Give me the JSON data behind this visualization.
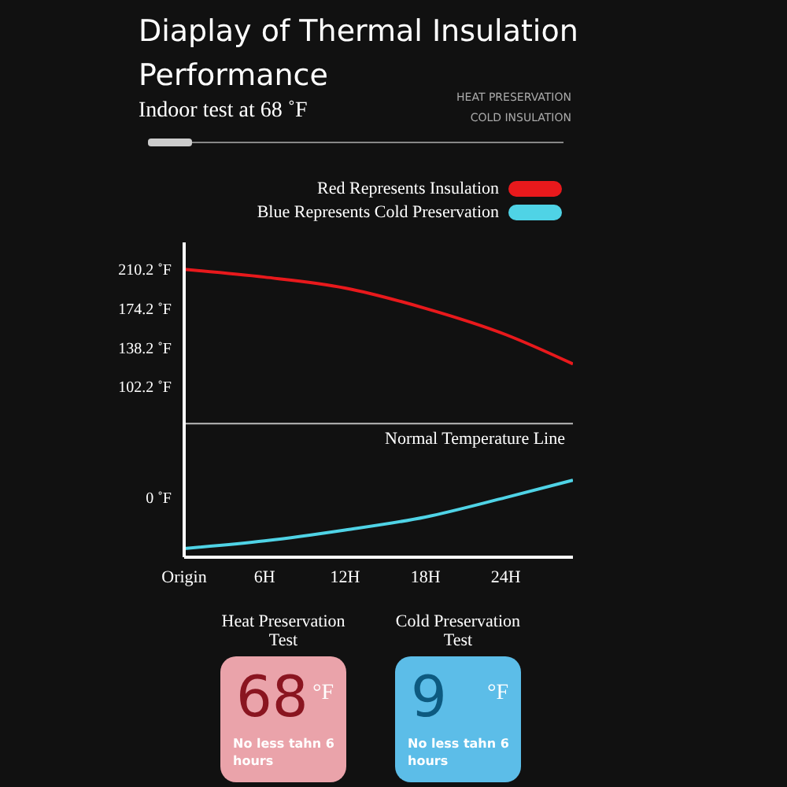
{
  "chart_data": [
    {
      "type": "line",
      "title": "Diaplay of Thermal Insulation Performance",
      "subtitle": "Indoor test at 68 ˚F",
      "annotations": [
        "HEAT PRESERVATION",
        "COLD INSULATION"
      ],
      "x": [
        0,
        6,
        12,
        18,
        24,
        29
      ],
      "xlim": [
        0,
        29
      ],
      "xticks": [
        {
          "value": 0,
          "label": "Origin"
        },
        {
          "value": 6,
          "label": "6H"
        },
        {
          "value": 12,
          "label": "12H"
        },
        {
          "value": 18,
          "label": "18H"
        },
        {
          "value": 24,
          "label": "24H"
        }
      ],
      "ylim": [
        -55,
        235
      ],
      "yticks": [
        {
          "value": 0,
          "label": "0 ˚F"
        },
        {
          "value": 102.2,
          "label": "102.2 ˚F"
        },
        {
          "value": 138.2,
          "label": "138.2 ˚F"
        },
        {
          "value": 174.2,
          "label": "174.2 ˚F"
        },
        {
          "value": 210.2,
          "label": "210.2 ˚F"
        }
      ],
      "series": [
        {
          "name": "Red Represents Insulation",
          "color": "#e8191c",
          "values": [
            210.2,
            203,
            193,
            174.2,
            150,
            123
          ]
        },
        {
          "name": "Blue Represents Cold Preservation",
          "color": "#4fd3e6",
          "values": [
            -47,
            -40,
            -30,
            -18,
            0,
            16
          ]
        }
      ],
      "ref_lines": [
        {
          "axis": "y",
          "value": 68,
          "label": "Normal Temperature Line",
          "color": "#bbbbbb"
        }
      ],
      "legend": "top right",
      "grid": false,
      "marker": "none",
      "line_style": "solid"
    },
    {
      "type": "other",
      "categories": [
        "Heat Preservation Test",
        "Cold Preservation Test"
      ],
      "values": [
        68,
        9
      ],
      "colors": [
        "#eaa3aa",
        "#5cbde8"
      ],
      "data_labels": true,
      "annotations": [
        "°F",
        "No less tahn 6 hours",
        "°F",
        "No less tahn 6 hours"
      ]
    }
  ]
}
